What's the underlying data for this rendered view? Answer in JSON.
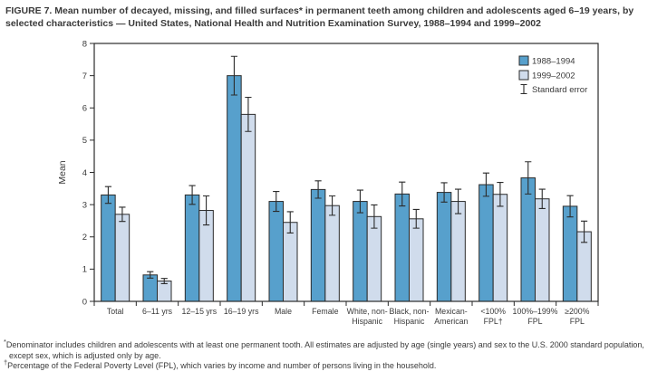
{
  "title": "FIGURE 7. Mean number of decayed, missing, and filled surfaces* in permanent teeth among children and adolescents aged 6–19 years, by selected characteristics — United States, National Health and Nutrition Examination Survey, 1988–1994 and 1999–2002",
  "colors": {
    "series_1988_1994": "#57a0cc",
    "series_1999_2002": "#d0dcec",
    "bar_border": "#2b2b2b",
    "axis": "#2b2b2b",
    "text": "#3a3a3a",
    "background": "#ffffff"
  },
  "chart_data": {
    "type": "bar",
    "title": "",
    "xlabel": "",
    "ylabel": "Mean",
    "ylim": [
      0,
      8
    ],
    "ytick_step": 1,
    "yticks": [
      0,
      1,
      2,
      3,
      4,
      5,
      6,
      7,
      8
    ],
    "grid": false,
    "legend_position": "top-right-inside",
    "legend_error_label": "Standard error",
    "categories": [
      "Total",
      "6–11 yrs",
      "12–15 yrs",
      "16–19 yrs",
      "Male",
      "Female",
      "White, non-Hispanic",
      "Black, non-Hispanic",
      "Mexican-American",
      "<100% FPL†",
      "100%–199% FPL",
      "≥200% FPL"
    ],
    "category_label_lines": [
      [
        "Total"
      ],
      [
        "6–11 yrs"
      ],
      [
        "12–15 yrs"
      ],
      [
        "16–19 yrs"
      ],
      [
        "Male"
      ],
      [
        "Female"
      ],
      [
        "White, non-",
        "Hispanic"
      ],
      [
        "Black, non-",
        "Hispanic"
      ],
      [
        "Mexican-",
        "American"
      ],
      [
        "<100%",
        "FPL†"
      ],
      [
        "100%–199%",
        "FPL"
      ],
      [
        "≥200%",
        "FPL"
      ]
    ],
    "series": [
      {
        "name": "1988–1994",
        "color": "#57a0cc",
        "values": [
          3.3,
          0.82,
          3.3,
          7.0,
          3.1,
          3.47,
          3.1,
          3.33,
          3.38,
          3.62,
          3.83,
          2.95
        ],
        "stderr": [
          0.26,
          0.1,
          0.29,
          0.6,
          0.31,
          0.27,
          0.35,
          0.37,
          0.3,
          0.36,
          0.5,
          0.33
        ]
      },
      {
        "name": "1999–2002",
        "color": "#d0dcec",
        "values": [
          2.7,
          0.63,
          2.82,
          5.8,
          2.45,
          2.97,
          2.63,
          2.56,
          3.1,
          3.32,
          3.18,
          2.16
        ],
        "stderr": [
          0.22,
          0.08,
          0.45,
          0.53,
          0.33,
          0.3,
          0.36,
          0.29,
          0.38,
          0.37,
          0.3,
          0.33
        ]
      }
    ]
  },
  "footnotes": [
    {
      "marker": "*",
      "text": "Denominator includes children and adolescents with at least one permanent tooth. All estimates are adjusted by age (single years) and sex to the U.S. 2000 standard population, except sex, which is adjusted only by age."
    },
    {
      "marker": "†",
      "text": "Percentage of the Federal Poverty Level (FPL), which varies by income and number of persons living in the household."
    }
  ]
}
